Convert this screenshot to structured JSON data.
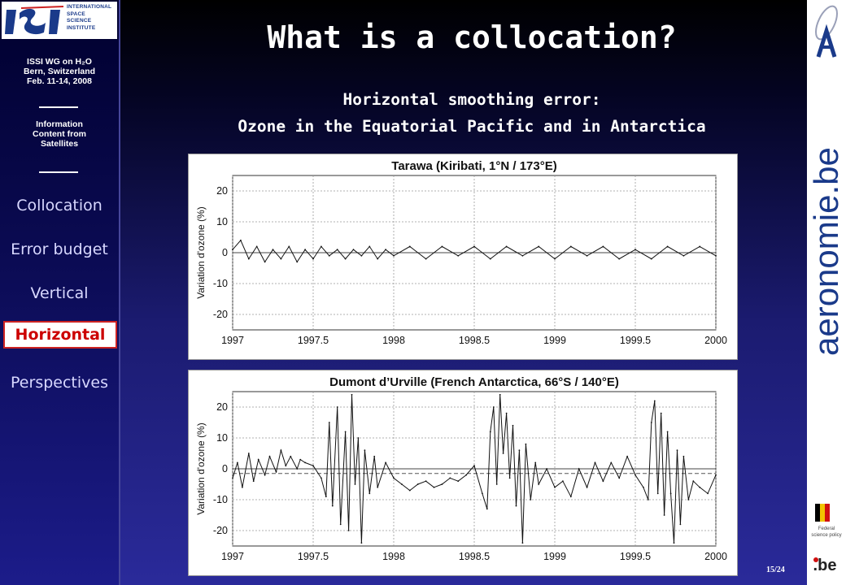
{
  "sidebar": {
    "logo_lines": [
      "INTERNATIONAL",
      "SPACE",
      "SCIENCE",
      "INSTITUTE"
    ],
    "info1": [
      "ISSI WG on H₂O",
      "Bern, Switzerland",
      "Feb. 11-14, 2008"
    ],
    "info2": [
      "Information",
      "Content from",
      "Satellites"
    ],
    "nav": [
      {
        "label": "Collocation",
        "active": false
      },
      {
        "label": "Error budget",
        "active": false
      },
      {
        "label": "Vertical",
        "active": false
      },
      {
        "label": "Horizontal",
        "active": true
      },
      {
        "label": "Perspectives",
        "active": false
      }
    ]
  },
  "slide": {
    "title": "What is a collocation?",
    "subtitle_line1": "Horizontal smoothing error:",
    "subtitle_line2": "Ozone in the Equatorial Pacific and in Antarctica",
    "page_number": "15/24"
  },
  "right_bar": {
    "logo_text": "aeronomie.be",
    "federal_text": [
      "Federal",
      "science policy"
    ],
    "be_text": ".be"
  },
  "colors": {
    "active_nav_text": "#cc0000",
    "slide_text": "#ffffff",
    "brand_logo": "#1a3a8a"
  },
  "chart_data": [
    {
      "type": "line",
      "title": "Tarawa (Kiribati,  1°N / 173°E)",
      "ylabel": "Variation d'ozone (%)",
      "xlabel": "",
      "xlim": [
        1997,
        2000
      ],
      "ylim": [
        -25,
        25
      ],
      "xticks": [
        "1997",
        "1997.5",
        "1998",
        "1998.5",
        "1999",
        "1999.5",
        "2000"
      ],
      "yticks": [
        "20",
        "10",
        "0",
        "-10",
        "-20"
      ],
      "grid": true,
      "series": [
        {
          "values": [
            [
              1997.0,
              1
            ],
            [
              1997.05,
              4
            ],
            [
              1997.1,
              -2
            ],
            [
              1997.15,
              2
            ],
            [
              1997.2,
              -3
            ],
            [
              1997.25,
              1
            ],
            [
              1997.3,
              -2
            ],
            [
              1997.35,
              2
            ],
            [
              1997.4,
              -3
            ],
            [
              1997.45,
              1
            ],
            [
              1997.5,
              -2
            ],
            [
              1997.55,
              2
            ],
            [
              1997.6,
              -1
            ],
            [
              1997.65,
              1
            ],
            [
              1997.7,
              -2
            ],
            [
              1997.75,
              1
            ],
            [
              1997.8,
              -1
            ],
            [
              1997.85,
              2
            ],
            [
              1997.9,
              -2
            ],
            [
              1997.95,
              1
            ],
            [
              1998.0,
              -1
            ],
            [
              1998.1,
              2
            ],
            [
              1998.2,
              -2
            ],
            [
              1998.3,
              2
            ],
            [
              1998.4,
              -1
            ],
            [
              1998.5,
              2
            ],
            [
              1998.6,
              -2
            ],
            [
              1998.7,
              2
            ],
            [
              1998.8,
              -1
            ],
            [
              1998.9,
              2
            ],
            [
              1999.0,
              -2
            ],
            [
              1999.1,
              2
            ],
            [
              1999.2,
              -1
            ],
            [
              1999.3,
              2
            ],
            [
              1999.4,
              -2
            ],
            [
              1999.5,
              1
            ],
            [
              1999.6,
              -2
            ],
            [
              1999.7,
              2
            ],
            [
              1999.8,
              -1
            ],
            [
              1999.9,
              2
            ],
            [
              2000.0,
              -1
            ]
          ]
        }
      ]
    },
    {
      "type": "line",
      "title": "Dumont d’Urville (French Antarctica,  66°S / 140°E)",
      "ylabel": "Variation d'ozone (%)",
      "xlabel": "",
      "xlim": [
        1997,
        2000
      ],
      "ylim": [
        -25,
        25
      ],
      "xticks": [
        "1997",
        "1997.5",
        "1998",
        "1998.5",
        "1999",
        "1999.5",
        "2000"
      ],
      "yticks": [
        "20",
        "10",
        "0",
        "-10",
        "-20"
      ],
      "grid": true,
      "reference_line": -1.5,
      "series": [
        {
          "values": [
            [
              1997.0,
              -3
            ],
            [
              1997.03,
              2
            ],
            [
              1997.06,
              -6
            ],
            [
              1997.1,
              5
            ],
            [
              1997.13,
              -4
            ],
            [
              1997.16,
              3
            ],
            [
              1997.2,
              -2
            ],
            [
              1997.23,
              4
            ],
            [
              1997.27,
              -1
            ],
            [
              1997.3,
              6
            ],
            [
              1997.33,
              1
            ],
            [
              1997.36,
              4
            ],
            [
              1997.4,
              0
            ],
            [
              1997.42,
              3
            ],
            [
              1997.45,
              2
            ],
            [
              1997.5,
              1
            ],
            [
              1997.55,
              -3
            ],
            [
              1997.58,
              -9
            ],
            [
              1997.6,
              15
            ],
            [
              1997.62,
              -12
            ],
            [
              1997.65,
              20
            ],
            [
              1997.67,
              -18
            ],
            [
              1997.7,
              12
            ],
            [
              1997.72,
              -20
            ],
            [
              1997.74,
              24
            ],
            [
              1997.76,
              -5
            ],
            [
              1997.78,
              10
            ],
            [
              1997.8,
              -24
            ],
            [
              1997.82,
              6
            ],
            [
              1997.85,
              -8
            ],
            [
              1997.88,
              4
            ],
            [
              1997.9,
              -6
            ],
            [
              1997.95,
              2
            ],
            [
              1998.0,
              -3
            ],
            [
              1998.05,
              -5
            ],
            [
              1998.1,
              -7
            ],
            [
              1998.15,
              -5
            ],
            [
              1998.2,
              -4
            ],
            [
              1998.25,
              -6
            ],
            [
              1998.3,
              -5
            ],
            [
              1998.35,
              -3
            ],
            [
              1998.4,
              -4
            ],
            [
              1998.45,
              -2
            ],
            [
              1998.5,
              1
            ],
            [
              1998.55,
              -8
            ],
            [
              1998.58,
              -13
            ],
            [
              1998.6,
              12
            ],
            [
              1998.62,
              20
            ],
            [
              1998.64,
              -5
            ],
            [
              1998.66,
              24
            ],
            [
              1998.68,
              5
            ],
            [
              1998.7,
              18
            ],
            [
              1998.72,
              -3
            ],
            [
              1998.74,
              14
            ],
            [
              1998.76,
              -12
            ],
            [
              1998.78,
              6
            ],
            [
              1998.8,
              -24
            ],
            [
              1998.82,
              8
            ],
            [
              1998.85,
              -10
            ],
            [
              1998.88,
              2
            ],
            [
              1998.9,
              -5
            ],
            [
              1998.95,
              0
            ],
            [
              1999.0,
              -6
            ],
            [
              1999.05,
              -4
            ],
            [
              1999.1,
              -9
            ],
            [
              1999.15,
              0
            ],
            [
              1999.2,
              -6
            ],
            [
              1999.25,
              2
            ],
            [
              1999.3,
              -4
            ],
            [
              1999.35,
              2
            ],
            [
              1999.4,
              -3
            ],
            [
              1999.45,
              4
            ],
            [
              1999.5,
              -2
            ],
            [
              1999.55,
              -6
            ],
            [
              1999.58,
              -10
            ],
            [
              1999.6,
              15
            ],
            [
              1999.62,
              22
            ],
            [
              1999.64,
              -8
            ],
            [
              1999.66,
              18
            ],
            [
              1999.68,
              -15
            ],
            [
              1999.7,
              12
            ],
            [
              1999.72,
              -8
            ],
            [
              1999.74,
              -24
            ],
            [
              1999.76,
              6
            ],
            [
              1999.78,
              -18
            ],
            [
              1999.8,
              4
            ],
            [
              1999.83,
              -10
            ],
            [
              1999.86,
              -4
            ],
            [
              1999.9,
              -6
            ],
            [
              1999.95,
              -8
            ],
            [
              2000.0,
              -2
            ]
          ]
        }
      ]
    }
  ]
}
